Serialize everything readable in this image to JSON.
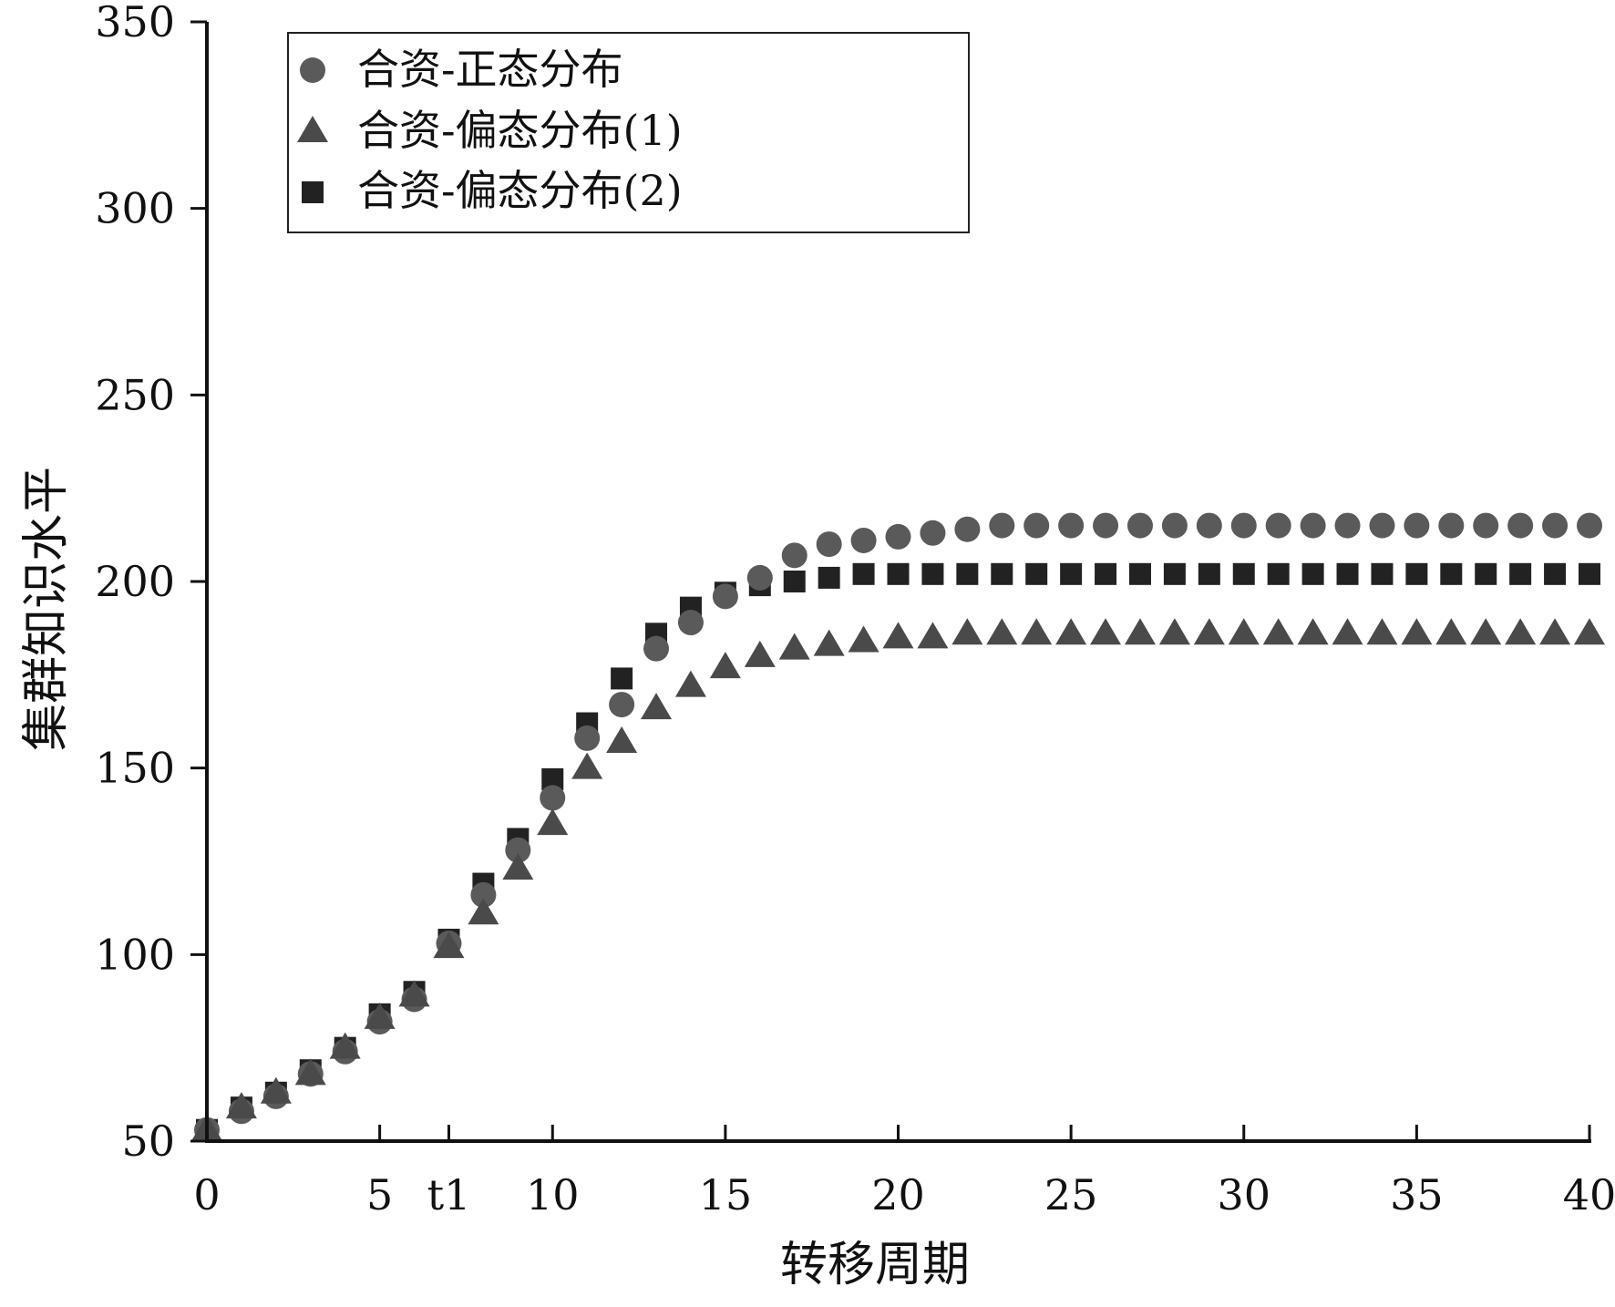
{
  "chart_data": {
    "type": "scatter",
    "title": "",
    "xlabel": "转移周期",
    "ylabel": "集群知识水平",
    "xlim": [
      0,
      40
    ],
    "ylim": [
      50,
      350
    ],
    "grid": false,
    "legend_position": "top-left",
    "x_ticks": [
      {
        "value": 0,
        "label": "0"
      },
      {
        "value": 5,
        "label": "5"
      },
      {
        "value": 7,
        "label": "t1"
      },
      {
        "value": 10,
        "label": "10"
      },
      {
        "value": 15,
        "label": "15"
      },
      {
        "value": 20,
        "label": "20"
      },
      {
        "value": 25,
        "label": "25"
      },
      {
        "value": 30,
        "label": "30"
      },
      {
        "value": 35,
        "label": "35"
      },
      {
        "value": 40,
        "label": "40"
      }
    ],
    "y_ticks": [
      {
        "value": 50,
        "label": "50"
      },
      {
        "value": 100,
        "label": "100"
      },
      {
        "value": 150,
        "label": "150"
      },
      {
        "value": 200,
        "label": "200"
      },
      {
        "value": 250,
        "label": "250"
      },
      {
        "value": 300,
        "label": "300"
      },
      {
        "value": 350,
        "label": "350"
      }
    ],
    "x": [
      0,
      1,
      2,
      3,
      4,
      5,
      6,
      7,
      8,
      9,
      10,
      11,
      12,
      13,
      14,
      15,
      16,
      17,
      18,
      19,
      20,
      21,
      22,
      23,
      24,
      25,
      26,
      27,
      28,
      29,
      30,
      31,
      32,
      33,
      34,
      35,
      36,
      37,
      38,
      39,
      40
    ],
    "series": [
      {
        "name": "合资-正态分布",
        "marker": "circle",
        "color": "#5a5a5a",
        "values": [
          53,
          58,
          62,
          68,
          74,
          82,
          88,
          103,
          116,
          128,
          142,
          158,
          167,
          182,
          189,
          196,
          201,
          207,
          210,
          211,
          212,
          213,
          214,
          215,
          215,
          215,
          215,
          215,
          215,
          215,
          215,
          215,
          215,
          215,
          215,
          215,
          215,
          215,
          215,
          215,
          215
        ]
      },
      {
        "name": "合资-偏态分布(1)",
        "marker": "triangle",
        "color": "#4a4a4a",
        "values": [
          53,
          59,
          63,
          68,
          75,
          83,
          89,
          102,
          111,
          123,
          135,
          150,
          157,
          166,
          172,
          177,
          180,
          182,
          183,
          184,
          185,
          185,
          186,
          186,
          186,
          186,
          186,
          186,
          186,
          186,
          186,
          186,
          186,
          186,
          186,
          186,
          186,
          186,
          186,
          186,
          186
        ]
      },
      {
        "name": "合资-偏态分布(2)",
        "marker": "square",
        "color": "#222222",
        "values": [
          53,
          59,
          63,
          69,
          75,
          84,
          90,
          104,
          119,
          131,
          147,
          162,
          174,
          186,
          193,
          197,
          199,
          200,
          201,
          202,
          202,
          202,
          202,
          202,
          202,
          202,
          202,
          202,
          202,
          202,
          202,
          202,
          202,
          202,
          202,
          202,
          202,
          202,
          202,
          202,
          202
        ]
      }
    ]
  }
}
